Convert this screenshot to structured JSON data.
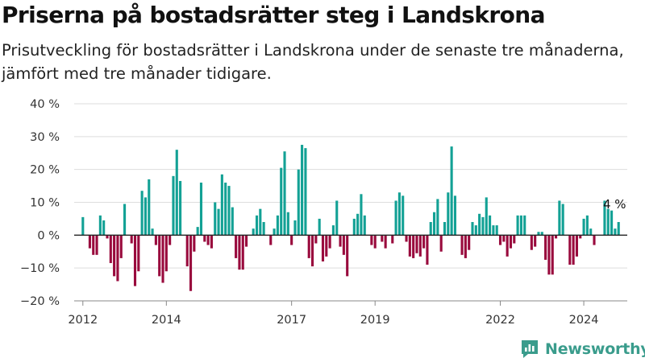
{
  "header": {
    "title": "Priserna på bostadsrätter steg i Landskrona",
    "subtitle": "Prisutveckling för bostadsrätter i Landskrona under de senaste tre månaderna, jämfört med tre månader tidigare."
  },
  "brand": {
    "name": "Newsworthy",
    "icon": "newsworthy-logo-icon",
    "color": "#3a9c8c"
  },
  "colors": {
    "positive": "#13a195",
    "negative": "#990a3d",
    "grid": "#dddddd",
    "zero_line": "#222222"
  },
  "chart_data": {
    "type": "bar",
    "title": "Priserna på bostadsrätter steg i Landskrona",
    "subtitle": "Prisutveckling för bostadsrätter i Landskrona under de senaste tre månaderna, jämfört med tre månader tidigare.",
    "ylabel": "",
    "xlabel": "",
    "y_unit": "%",
    "ylim": [
      -20,
      40
    ],
    "y_ticks": [
      -20,
      -10,
      0,
      10,
      20,
      30,
      40
    ],
    "y_tick_labels": [
      "−20 %",
      "−10 %",
      "0 %",
      "10 %",
      "20 %",
      "30 %",
      "40 %"
    ],
    "grid": true,
    "x_range": [
      "2011-11",
      "2025-02"
    ],
    "x_ticks": [
      "2012-01",
      "2014-01",
      "2017-01",
      "2019-01",
      "2022-01",
      "2024-01"
    ],
    "x_tick_labels": [
      "2012",
      "2014",
      "2017",
      "2019",
      "2022",
      "2024"
    ],
    "annotations": [
      {
        "x": "2024-07",
        "text": "4 %"
      }
    ],
    "series": [
      {
        "start": "2012-01",
        "values": [
          5.5,
          0,
          -4,
          -6,
          -6,
          6,
          4.5,
          -1,
          -8.5,
          -12.5,
          -14,
          -7,
          9.5,
          0,
          -2.5,
          -15.5,
          -11,
          13.5,
          11.5,
          17,
          2,
          -3,
          -12.5,
          -14.5,
          -11,
          -3,
          18,
          26,
          16.5,
          0,
          -9.5,
          -17,
          -5,
          2.5,
          16,
          -2,
          -3,
          -4,
          10,
          8,
          18.5,
          16,
          15,
          8.5,
          -7,
          -10.5,
          -10.5,
          -3.5,
          0,
          2,
          6,
          8,
          4,
          0,
          -3,
          2,
          6,
          20.5,
          25.5,
          7,
          -3,
          4.5,
          20,
          27.5,
          26.5,
          -7,
          -9.5,
          -2.5,
          5,
          -8,
          -6.5,
          -4,
          3,
          10.5,
          -3.5,
          -6,
          -12.5,
          0,
          5,
          6.5,
          12.5,
          6,
          0,
          -3,
          -4,
          0,
          -2,
          -4,
          0,
          -2.5,
          10.5,
          13,
          12,
          -2,
          -6.5,
          -7,
          -5.5,
          -6.5,
          -4,
          -9,
          4,
          7,
          11,
          -5,
          4,
          13,
          27,
          12,
          0,
          -6,
          -7,
          -4.5,
          4,
          3,
          6.5,
          5.5,
          11.5,
          6,
          3,
          3,
          -3,
          -2,
          -6.5,
          -4,
          -2.5,
          6,
          6,
          6,
          0,
          -4.5,
          -3.5,
          1,
          1,
          -7.5,
          -12,
          -12,
          -1,
          10.5,
          9.5,
          0,
          -9,
          -9,
          -6.5,
          -1,
          5,
          6,
          2,
          -3,
          0,
          0,
          10.5,
          8,
          7.5,
          2,
          4
        ]
      }
    ]
  }
}
